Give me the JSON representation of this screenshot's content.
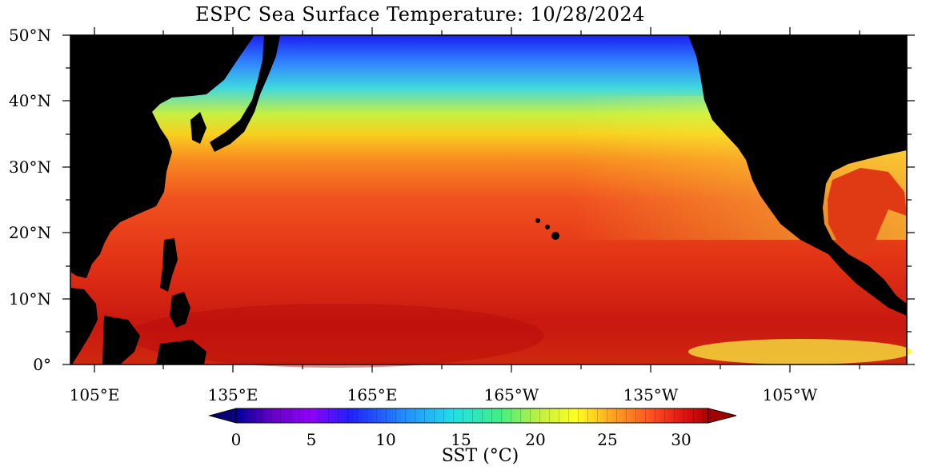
{
  "title": "ESPC Sea Surface Temperature: 10/28/2024",
  "lat_labels": [
    "50°N",
    "40°N",
    "30°N",
    "20°N",
    "10°N",
    "0°"
  ],
  "lon_labels": [
    "105°E",
    "135°E",
    "165°E",
    "165°W",
    "135°W",
    "105°W"
  ],
  "colorbar": {
    "title": "SST (°C)",
    "ticks": [
      "0",
      "5",
      "10",
      "15",
      "20",
      "25",
      "30"
    ],
    "min": 0,
    "max": 33
  },
  "colors": {
    "land": "#000000",
    "warm": "#d42a10",
    "hot": "#b81010",
    "cool": "#f2f040",
    "cold": "#2a48ff"
  }
}
